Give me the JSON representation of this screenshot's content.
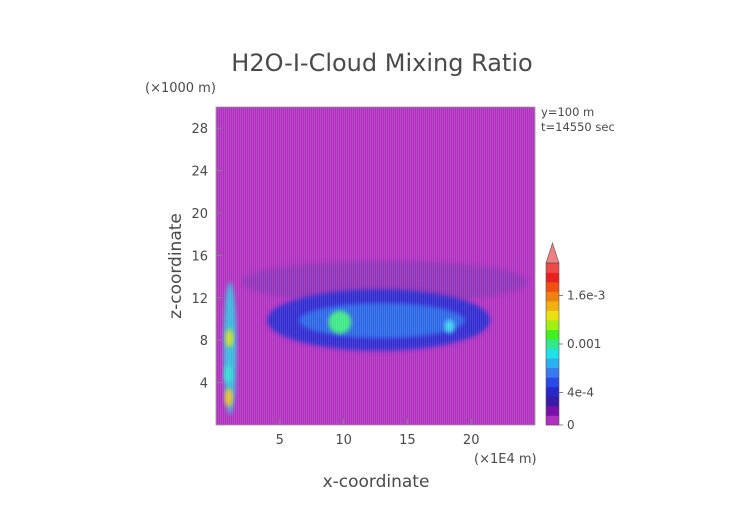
{
  "chart_data": {
    "type": "heatmap",
    "title": "H2O-I-Cloud Mixing Ratio",
    "xlabel": "x-coordinate",
    "ylabel": "z-coordinate",
    "x_unit": "(×1E4 m)",
    "y_unit": "(×1000 m)",
    "xlim": [
      0,
      25
    ],
    "ylim": [
      0,
      30
    ],
    "x_ticks": [
      5,
      10,
      15,
      20
    ],
    "y_ticks": [
      4,
      8,
      12,
      16,
      20,
      24,
      28
    ],
    "annotations": [
      "y=100 m",
      "t=14550 sec"
    ],
    "colorbar": {
      "tick_labels": [
        "0",
        "4e-4",
        "0.001",
        "1.6e-3"
      ],
      "tick_values": [
        0,
        0.0004,
        0.001,
        0.0016
      ],
      "range": [
        0,
        0.002
      ],
      "colors": [
        "#b030c0",
        "#7a10a8",
        "#3a1aa8",
        "#2828c8",
        "#2a4ae8",
        "#3a7af0",
        "#2ab0f0",
        "#20e0e8",
        "#30e890",
        "#40f020",
        "#a0f010",
        "#e8e010",
        "#f0b010",
        "#f08010",
        "#f05010",
        "#e82020",
        "#f04848",
        "#f08080"
      ]
    },
    "background_color": "#b030c0",
    "regions": [
      {
        "name": "anvil outer",
        "color": "#9030b8",
        "x_range": [
          2.0,
          24.5
        ],
        "z_range": [
          11.5,
          15.5
        ]
      },
      {
        "name": "cloud core",
        "color": "#2a2ad0",
        "x_range": [
          4.0,
          21.5
        ],
        "z_range": [
          7.0,
          12.8
        ]
      },
      {
        "name": "dense core",
        "color": "#2a6ae8",
        "x_range": [
          6.5,
          19.5
        ],
        "z_range": [
          8.2,
          11.5
        ]
      },
      {
        "name": "max core",
        "color": "#40f080",
        "x_range": [
          8.8,
          10.6
        ],
        "z_range": [
          8.6,
          10.8
        ]
      },
      {
        "name": "left column",
        "color": "#30c0e0",
        "x_range": [
          0.6,
          1.6
        ],
        "z_range": [
          1.0,
          13.5
        ]
      }
    ],
    "grid": false,
    "legend": "colorbar-right"
  }
}
